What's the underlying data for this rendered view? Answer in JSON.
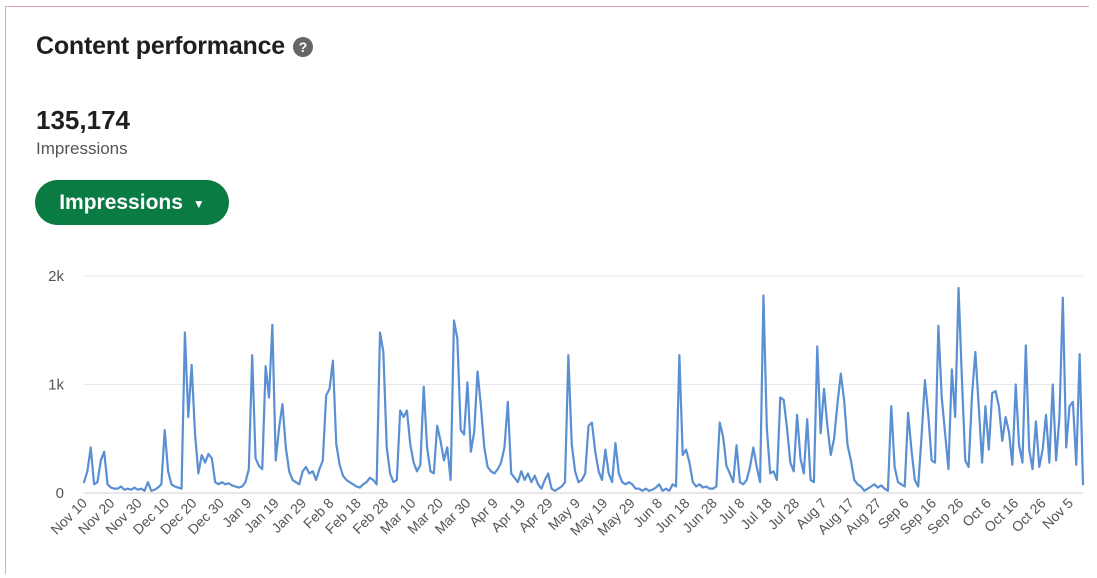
{
  "header": {
    "title": "Content performance",
    "help_icon": "help-icon"
  },
  "summary": {
    "value": "135,174",
    "label": "Impressions"
  },
  "selector": {
    "label": "Impressions",
    "icon": "chevron-down-icon"
  },
  "chart_data": {
    "type": "line",
    "series": [
      {
        "values": [
          0.1,
          0.2,
          0.42,
          0.08,
          0.1,
          0.3,
          0.38,
          0.08,
          0.05,
          0.04,
          0.04,
          0.06,
          0.03,
          0.04,
          0.03,
          0.05,
          0.03,
          0.04,
          0.02,
          0.1,
          0.02,
          0.03,
          0.05,
          0.08,
          0.58,
          0.2,
          0.08,
          0.06,
          0.05,
          0.04,
          1.48,
          0.7,
          1.18,
          0.55,
          0.18,
          0.35,
          0.28,
          0.36,
          0.32,
          0.1,
          0.08,
          0.1,
          0.08,
          0.09,
          0.07,
          0.06,
          0.05,
          0.06,
          0.1,
          0.22,
          1.27,
          0.32,
          0.25,
          0.22,
          1.17,
          0.88,
          1.55,
          0.3,
          0.6,
          0.82,
          0.42,
          0.2,
          0.12,
          0.1,
          0.08,
          0.2,
          0.24,
          0.18,
          0.2,
          0.12,
          0.22,
          0.3,
          0.9,
          0.96,
          1.22,
          0.45,
          0.26,
          0.16,
          0.12,
          0.1,
          0.08,
          0.06,
          0.05,
          0.08,
          0.1,
          0.14,
          0.12,
          0.08,
          1.48,
          1.3,
          0.42,
          0.18,
          0.1,
          0.12,
          0.76,
          0.7,
          0.76,
          0.45,
          0.28,
          0.2,
          0.26,
          0.98,
          0.42,
          0.2,
          0.18,
          0.62,
          0.48,
          0.3,
          0.42,
          0.12,
          1.59,
          1.42,
          0.58,
          0.54,
          1.02,
          0.38,
          0.56,
          1.12,
          0.8,
          0.42,
          0.24,
          0.2,
          0.18,
          0.22,
          0.28,
          0.42,
          0.84,
          0.18,
          0.14,
          0.1,
          0.2,
          0.12,
          0.18,
          0.1,
          0.16,
          0.08,
          0.04,
          0.12,
          0.18,
          0.04,
          0.02,
          0.04,
          0.06,
          0.1,
          1.27,
          0.45,
          0.2,
          0.1,
          0.12,
          0.18,
          0.62,
          0.65,
          0.38,
          0.2,
          0.12,
          0.4,
          0.18,
          0.1,
          0.46,
          0.18,
          0.1,
          0.08,
          0.1,
          0.08,
          0.04,
          0.04,
          0.02,
          0.04,
          0.02,
          0.03,
          0.05,
          0.08,
          0.02,
          0.04,
          0.02,
          0.08,
          0.06,
          1.27,
          0.35,
          0.4,
          0.28,
          0.1,
          0.06,
          0.08,
          0.05,
          0.06,
          0.04,
          0.04,
          0.06,
          0.65,
          0.52,
          0.25,
          0.18,
          0.1,
          0.44,
          0.1,
          0.08,
          0.12,
          0.24,
          0.42,
          0.24,
          0.1,
          1.82,
          0.6,
          0.18,
          0.2,
          0.12,
          0.88,
          0.86,
          0.6,
          0.28,
          0.2,
          0.72,
          0.32,
          0.18,
          0.68,
          0.12,
          0.1,
          1.35,
          0.55,
          0.96,
          0.62,
          0.35,
          0.5,
          0.82,
          1.1,
          0.85,
          0.44,
          0.3,
          0.12,
          0.08,
          0.06,
          0.02,
          0.04,
          0.06,
          0.08,
          0.05,
          0.07,
          0.04,
          0.02,
          0.8,
          0.24,
          0.1,
          0.08,
          0.06,
          0.74,
          0.4,
          0.12,
          0.06,
          0.52,
          1.04,
          0.72,
          0.3,
          0.28,
          1.54,
          0.88,
          0.55,
          0.22,
          1.14,
          0.7,
          1.89,
          1.05,
          0.3,
          0.24,
          0.9,
          1.3,
          0.8,
          0.28,
          0.8,
          0.4,
          0.92,
          0.94,
          0.8,
          0.48,
          0.7,
          0.56,
          0.26,
          1.0,
          0.44,
          0.28,
          1.36,
          0.4,
          0.22,
          0.66,
          0.24,
          0.4,
          0.72,
          0.28,
          1.0,
          0.3,
          0.7,
          1.8,
          0.42,
          0.8,
          0.84,
          0.26,
          1.28,
          0.08
        ]
      }
    ],
    "x_tick_labels": [
      "Nov 10",
      "Nov 20",
      "Nov 30",
      "Dec 10",
      "Dec 20",
      "Dec 30",
      "Jan 9",
      "Jan 19",
      "Jan 29",
      "Feb 8",
      "Feb 18",
      "Feb 28",
      "Mar 10",
      "Mar 20",
      "Mar 30",
      "Apr 9",
      "Apr 19",
      "Apr 29",
      "May 9",
      "May 19",
      "May 29",
      "Jun 8",
      "Jun 18",
      "Jun 28",
      "Jul 8",
      "Jul 18",
      "Jul 28",
      "Aug 7",
      "Aug 17",
      "Aug 27",
      "Sep 6",
      "Sep 16",
      "Sep 26",
      "Oct 6",
      "Oct 16",
      "Oct 26",
      "Nov 5"
    ],
    "y_tick_labels": [
      "0",
      "1k",
      "2k"
    ],
    "ylim": [
      0,
      2
    ],
    "xlabel": "",
    "ylabel": "",
    "grid": true,
    "line_color": "#5b8fd3",
    "grid_color": "#e8e8e8",
    "tick_color": "#555555"
  }
}
